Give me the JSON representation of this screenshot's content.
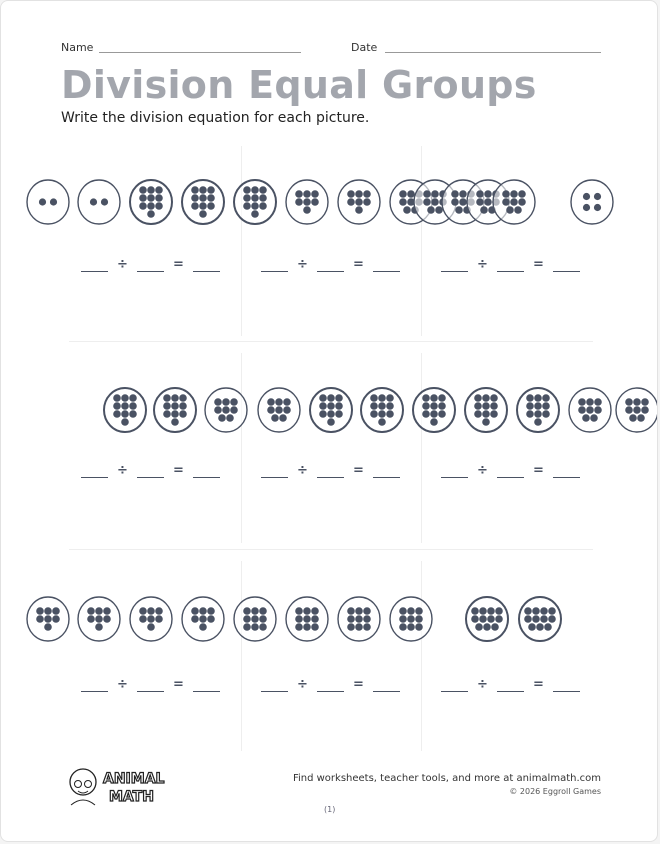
{
  "header": {
    "name_label": "Name",
    "date_label": "Date"
  },
  "title": "Division Equal Groups",
  "subtitle": "Write the division equation for each picture.",
  "problems": [
    {
      "circles": [
        2,
        2,
        10,
        10,
        10,
        7,
        7,
        8,
        8,
        8,
        8,
        8,
        4
      ]
    },
    {
      "circles": [
        10,
        10,
        8,
        8,
        10,
        10,
        10,
        10,
        10,
        8,
        8
      ]
    },
    {
      "circles": [
        7,
        7,
        7,
        7,
        9,
        9,
        9,
        9,
        11,
        11
      ]
    }
  ],
  "equation": {
    "divide": "÷",
    "equals": "="
  },
  "footer": {
    "brand": "ANIMAL MATH",
    "brand_line1": "ANIMAL",
    "brand_line2": "MATH",
    "promo": "Find worksheets, teacher tools, and more at animalmath.com",
    "copyright": "© 2026 Eggroll Games",
    "page": "(1)"
  },
  "colors": {
    "dot": "#4a5263",
    "title": "#a3a6ad"
  }
}
